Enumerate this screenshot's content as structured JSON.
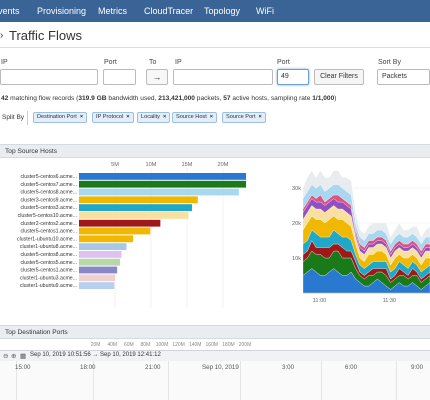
{
  "nav": {
    "items": [
      {
        "label": "vents"
      },
      {
        "label": "Provisioning"
      },
      {
        "label": "Metrics"
      },
      {
        "label": "CloudTracer"
      },
      {
        "label": "Topology"
      },
      {
        "label": "WiFi"
      }
    ]
  },
  "page": {
    "title": "Traffic Flows"
  },
  "filters": {
    "ip_label": "IP",
    "port_label": "Port",
    "to_label": "To",
    "ip2_label": "IP",
    "port2_label": "Port",
    "sort_label": "Sort By",
    "ip_value": "",
    "port_value": "",
    "arrow": "→",
    "ip2_value": "",
    "port2_value": "49",
    "clear_label": "Clear Filters",
    "sort_value": "Packets"
  },
  "summary": {
    "count": "42",
    "t1": " matching flow records (",
    "bandwidth": "319.9 GB",
    "t2": " bandwidth used, ",
    "packets": "213,421,000",
    "t3": " packets, ",
    "hosts": "57",
    "t4": " active hosts, sampling rate ",
    "rate": "1/1,000",
    "t5": ")"
  },
  "split": {
    "label": "Split By",
    "tags": [
      "Destination Port",
      "IP Protocol",
      "Locality",
      "Source Host",
      "Source Port"
    ],
    "remove_glyph": "×"
  },
  "panels": {
    "top_sources": "Top Source Hosts",
    "top_dest": "Top Destination Ports"
  },
  "chart_data": [
    {
      "type": "bar",
      "orientation": "horizontal",
      "title": "Top Source Hosts",
      "x_ticks": [
        "5M",
        "10M",
        "15M",
        "20M"
      ],
      "xlim": [
        0,
        25
      ],
      "categories": [
        "cluster5-centos6.acme...",
        "cluster5-centos7.acme...",
        "cluster5-centos8.acme...",
        "cluster3-centos9.acme...",
        "cluster5-centos3.acme...",
        "cluster5-centos10.acme...",
        "cluster2-centos2.acme...",
        "cluster5-centos1.acme...",
        "cluster1-ubuntu10.acme...",
        "cluster1-ubuntu8.acme...",
        "cluster5-centos8.acme...",
        "cluster5-centos5.acme...",
        "cluster5-centos1.acme...",
        "cluster1-ubuntu3.acme...",
        "cluster1-ubuntu9.acme..."
      ],
      "values": [
        23.2,
        23.2,
        22.2,
        16.5,
        15.7,
        15.2,
        11.3,
        9.9,
        7.5,
        6.6,
        5.9,
        5.7,
        5.3,
        5.0,
        4.9
      ],
      "colors": [
        "#2979d0",
        "#1a7a1a",
        "#a8d8f0",
        "#f0b800",
        "#20a8c8",
        "#f8e0a0",
        "#a01818",
        "#f0b800",
        "#f0b800",
        "#a8c8e8",
        "#e0c0f0",
        "#b8d8a8",
        "#8888c8",
        "#f0d0d0",
        "#b8d0f0"
      ]
    },
    {
      "type": "area",
      "stacked": true,
      "title": "",
      "y_ticks": [
        "10k",
        "20k",
        "30k"
      ],
      "ylim": [
        0,
        38
      ],
      "x_ticks": [
        "11:00",
        "11:30"
      ],
      "x": [
        0,
        1,
        2,
        3,
        4,
        5,
        6,
        7,
        8,
        9,
        10,
        11,
        12,
        13,
        14,
        15,
        16,
        17,
        18,
        19,
        20,
        21,
        22,
        23,
        24,
        25,
        26,
        27,
        28,
        29
      ],
      "series": [
        {
          "color": "#2979d0",
          "values": [
            5,
            6,
            7,
            6,
            5,
            5,
            6,
            7,
            6,
            5,
            5,
            6,
            4,
            3,
            2,
            2,
            3,
            4,
            3,
            2,
            1,
            2,
            3,
            2,
            2,
            3,
            2,
            1,
            2,
            3
          ]
        },
        {
          "color": "#1a7a1a",
          "values": [
            4,
            4,
            5,
            5,
            6,
            5,
            4,
            5,
            6,
            5,
            5,
            4,
            3,
            2,
            2,
            3,
            2,
            2,
            3,
            3,
            2,
            2,
            2,
            3,
            2,
            2,
            3,
            2,
            2,
            2
          ]
        },
        {
          "color": "#a01818",
          "values": [
            2,
            2,
            3,
            2,
            2,
            3,
            3,
            2,
            2,
            3,
            2,
            2,
            2,
            1,
            1,
            1,
            2,
            1,
            1,
            2,
            1,
            1,
            2,
            1,
            1,
            2,
            1,
            1,
            1,
            1
          ]
        },
        {
          "color": "#20a8c8",
          "values": [
            3,
            3,
            3,
            4,
            3,
            3,
            3,
            4,
            3,
            3,
            4,
            3,
            2,
            2,
            2,
            2,
            2,
            2,
            2,
            2,
            2,
            2,
            2,
            2,
            2,
            2,
            2,
            2,
            2,
            2
          ]
        },
        {
          "color": "#f0b800",
          "values": [
            4,
            5,
            4,
            4,
            5,
            4,
            5,
            4,
            4,
            5,
            4,
            4,
            3,
            2,
            2,
            3,
            2,
            3,
            3,
            2,
            2,
            3,
            2,
            2,
            3,
            2,
            2,
            2,
            3,
            2
          ]
        },
        {
          "color": "#f8e0a0",
          "values": [
            3,
            3,
            3,
            3,
            3,
            3,
            3,
            3,
            3,
            3,
            3,
            3,
            2,
            2,
            2,
            2,
            2,
            2,
            2,
            2,
            2,
            2,
            2,
            2,
            2,
            2,
            2,
            2,
            2,
            2
          ]
        },
        {
          "color": "#9050c0",
          "values": [
            2,
            2,
            2,
            2,
            2,
            2,
            2,
            2,
            2,
            2,
            2,
            2,
            1,
            1,
            1,
            1,
            1,
            1,
            1,
            1,
            1,
            1,
            1,
            1,
            1,
            1,
            1,
            1,
            1,
            1
          ]
        },
        {
          "color": "#e05080",
          "values": [
            1,
            1,
            1,
            1,
            2,
            1,
            1,
            1,
            2,
            1,
            1,
            1,
            1,
            1,
            1,
            1,
            1,
            1,
            1,
            1,
            1,
            1,
            1,
            1,
            1,
            1,
            1,
            1,
            1,
            1
          ]
        },
        {
          "color": "#a8d8f0",
          "values": [
            3,
            3,
            3,
            3,
            3,
            3,
            3,
            3,
            3,
            3,
            3,
            3,
            2,
            2,
            2,
            2,
            2,
            2,
            2,
            2,
            2,
            2,
            2,
            2,
            2,
            2,
            2,
            2,
            2,
            2
          ]
        },
        {
          "color": "#e8ecef",
          "values": [
            3,
            4,
            4,
            3,
            4,
            4,
            3,
            4,
            4,
            3,
            4,
            4,
            3,
            2,
            2,
            2,
            3,
            2,
            2,
            3,
            2,
            2,
            3,
            2,
            2,
            2,
            3,
            2,
            2,
            3
          ]
        }
      ]
    },
    {
      "type": "bar",
      "title": "Top Destination Ports",
      "x_ticks": [
        "20M",
        "40M",
        "60M",
        "80M",
        "100M",
        "120M",
        "140M",
        "160M",
        "180M",
        "200M"
      ]
    }
  ],
  "timeline": {
    "range": "Sep 10, 2019 10:51:56  →  Sep 10, 2019 12:41:12",
    "labels": [
      "15:00",
      "18:00",
      "21:00",
      "Sep 10, 2019",
      "3:00",
      "6:00",
      "9:00"
    ],
    "zoom_out": "⊖",
    "zoom_in": "⊕",
    "calendar": "▦"
  }
}
